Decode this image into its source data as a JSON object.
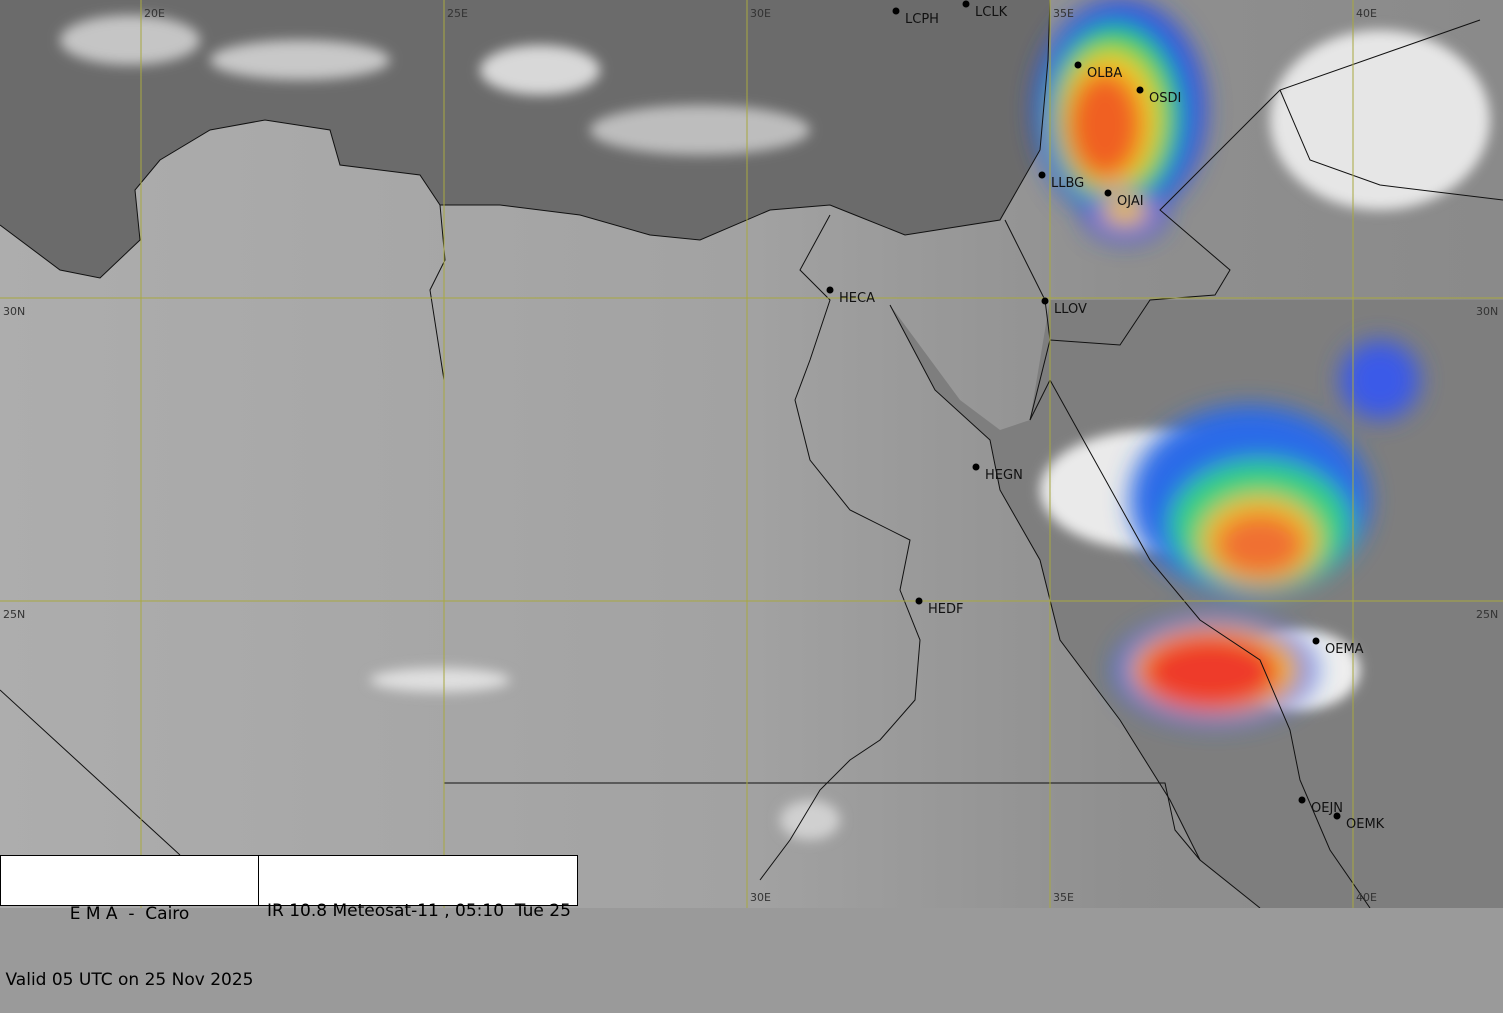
{
  "grid": {
    "lon_labels": [
      "20E",
      "25E",
      "30E",
      "35E",
      "40E"
    ],
    "lat_labels": [
      "30N",
      "25N"
    ]
  },
  "stations": [
    "LCPH",
    "LCLK",
    "OLBA",
    "OSDI",
    "LLBG",
    "OJAI",
    "HECA",
    "LLOV",
    "HEGN",
    "HEDF",
    "OEMA",
    "OEJN",
    "OEMK"
  ],
  "info": {
    "agency": "E M A  -  Cairo",
    "valid": "Valid 05 UTC on 25 Nov 2025",
    "product": "IR 10.8 Meteosat-11 , 05:10  Tue 25"
  }
}
